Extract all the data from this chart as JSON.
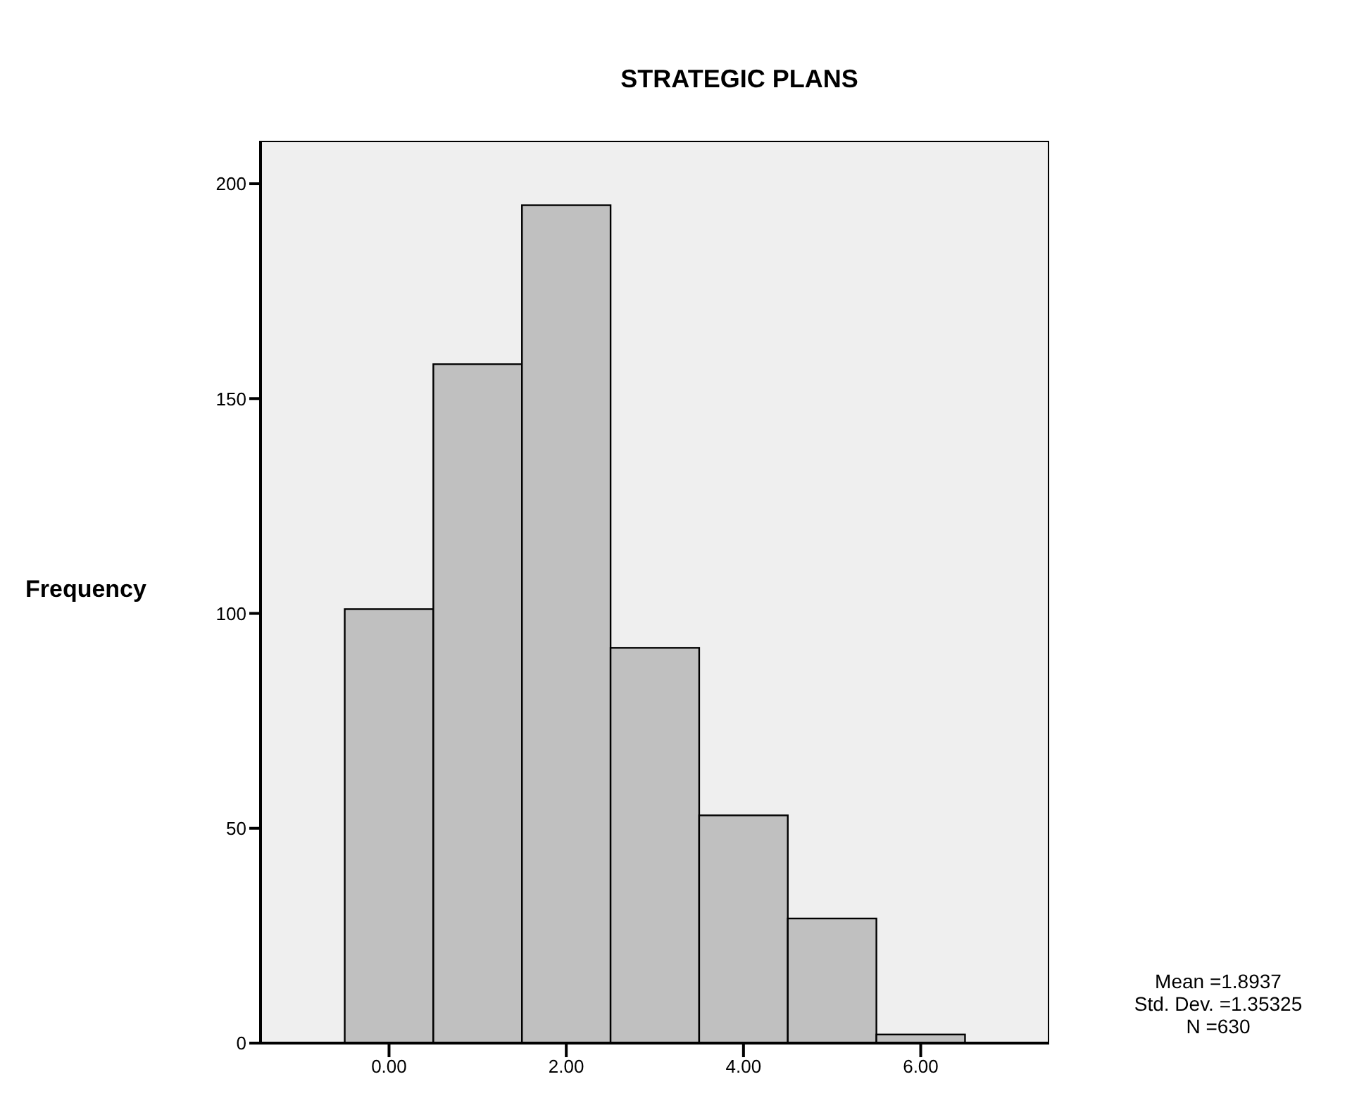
{
  "chart_data": {
    "type": "histogram",
    "title": "STRATEGIC PLANS",
    "ylabel": "Frequency",
    "bins": [
      -0.5,
      0.5,
      1.5,
      2.5,
      3.5,
      4.5,
      5.5,
      6.5
    ],
    "values": [
      101,
      158,
      195,
      92,
      53,
      29,
      2
    ],
    "color": "#c0c0c0",
    "xlim": [
      -1.45,
      7.45
    ],
    "xticks": [
      {
        "value": 0,
        "label": "0.00"
      },
      {
        "value": 2,
        "label": "2.00"
      },
      {
        "value": 4,
        "label": "4.00"
      },
      {
        "value": 6,
        "label": "6.00"
      }
    ],
    "ylim": [
      0,
      210
    ],
    "yticks": [
      0,
      50,
      100,
      150,
      200
    ],
    "grid": false,
    "annotations": [
      "Mean =1.8937",
      "Std. Dev. =1.35325",
      "N =630"
    ]
  }
}
